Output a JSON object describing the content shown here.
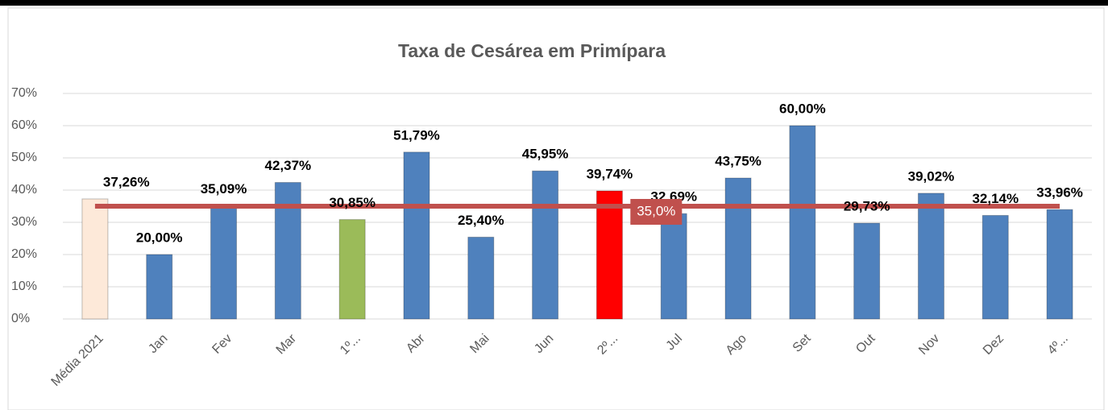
{
  "chart_data": {
    "type": "bar",
    "title": "Taxa de Cesárea em Primípara",
    "categories": [
      "Média 2021",
      "Jan",
      "Fev",
      "Mar",
      "1º...",
      "Abr",
      "Mai",
      "Jun",
      "2º...",
      "Jul",
      "Ago",
      "Set",
      "Out",
      "Nov",
      "Dez",
      "4º..."
    ],
    "values": [
      37.26,
      20.0,
      35.09,
      42.37,
      30.85,
      51.79,
      25.4,
      45.95,
      39.74,
      32.69,
      43.75,
      60.0,
      29.73,
      39.02,
      32.14,
      33.96
    ],
    "value_labels": [
      "37,26%",
      "20,00%",
      "35,09%",
      "42,37%",
      "30,85%",
      "51,79%",
      "25,40%",
      "45,95%",
      "39,74%",
      "32,69%",
      "43,75%",
      "60,00%",
      "29,73%",
      "39,02%",
      "32,14%",
      "33,96%"
    ],
    "colors": [
      "#fde9d9",
      "#4f81bd",
      "#4f81bd",
      "#4f81bd",
      "#9bbb59",
      "#4f81bd",
      "#4f81bd",
      "#4f81bd",
      "#ff0000",
      "#4f81bd",
      "#4f81bd",
      "#4f81bd",
      "#4f81bd",
      "#4f81bd",
      "#4f81bd",
      "#4f81bd"
    ],
    "target": {
      "value": 35,
      "value_label": "35,0%",
      "color": "#c0504d"
    },
    "ylim": [
      0,
      70
    ],
    "yticks": [
      {
        "value": 0,
        "label": "0%"
      },
      {
        "value": 10,
        "label": "10%"
      },
      {
        "value": 20,
        "label": "20%"
      },
      {
        "value": 30,
        "label": "30%"
      },
      {
        "value": 40,
        "label": "40%"
      },
      {
        "value": 50,
        "label": "50%"
      },
      {
        "value": 60,
        "label": "60%"
      },
      {
        "value": 70,
        "label": "70%"
      }
    ],
    "grid": true
  }
}
